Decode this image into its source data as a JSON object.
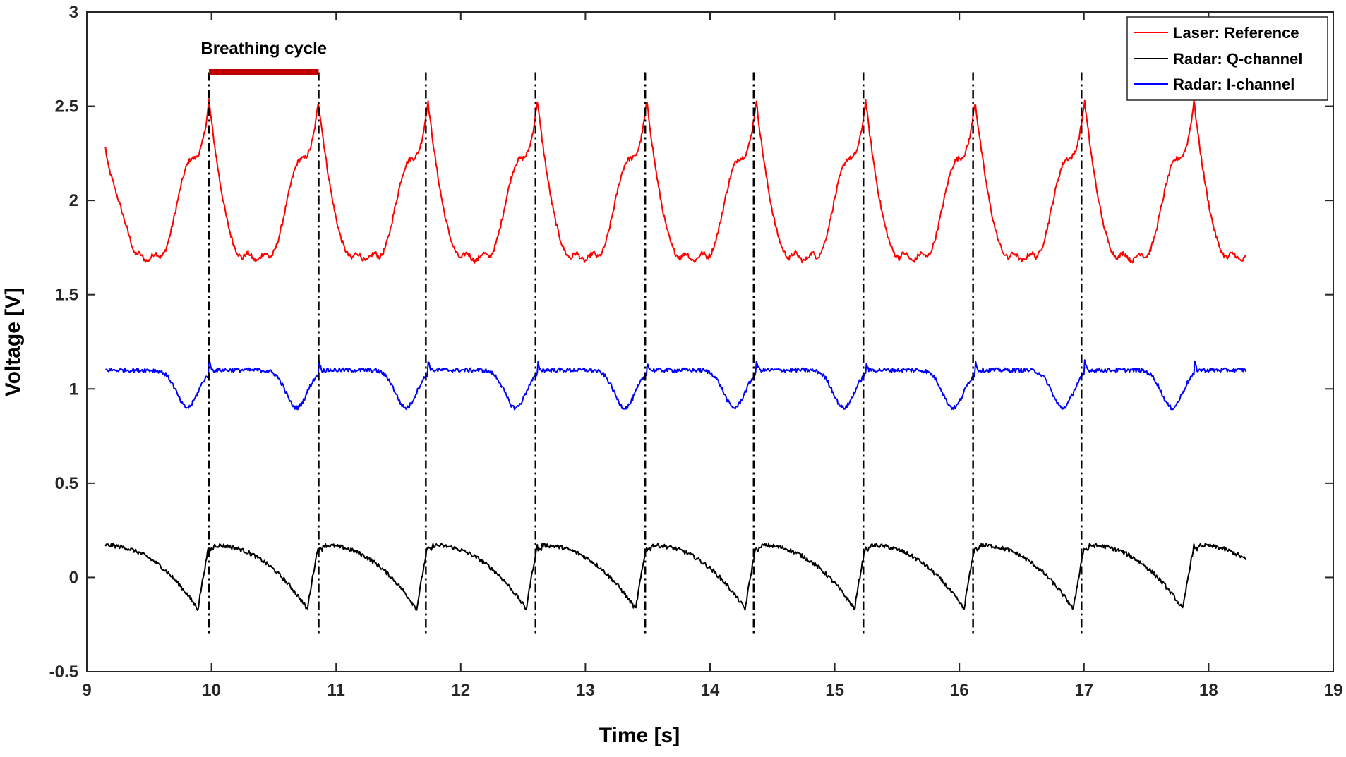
{
  "chart_data": {
    "type": "line",
    "xlabel": "Time [s]",
    "ylabel": "Voltage [V]",
    "xlim": [
      9,
      19
    ],
    "ylim": [
      -0.5,
      3
    ],
    "xticks": [
      9,
      10,
      11,
      12,
      13,
      14,
      15,
      16,
      17,
      18,
      19
    ],
    "yticks": [
      -0.5,
      0,
      0.5,
      1,
      1.5,
      2,
      2.5,
      3
    ],
    "ytick_labels": [
      "-0.5",
      "0",
      "0.5",
      "1",
      "1.5",
      "2",
      "2.5",
      "3"
    ],
    "grid": false,
    "legend_position": "top-right",
    "x_range": [
      9.15,
      18.3
    ],
    "series": [
      {
        "name": "Laser: Reference",
        "color": "#ff0000",
        "cycle_period": 0.878,
        "first_peak_time": 9.98,
        "peak_value": 2.53,
        "baseline_value": 1.7,
        "start_value": 2.23
      },
      {
        "name": "Radar: Q-channel",
        "color": "#000000",
        "cycle_period": 0.878,
        "first_peak_time": 9.98,
        "peak_value": 0.17,
        "trough_value": -0.17
      },
      {
        "name": "Radar: I-channel",
        "color": "#0000ff",
        "cycle_period": 0.878,
        "first_peak_time": 9.98,
        "plateau_value": 1.1,
        "dip_value": 0.9
      }
    ],
    "vertical_markers": [
      9.98,
      10.86,
      11.72,
      12.6,
      13.48,
      14.35,
      15.23,
      16.11,
      16.98
    ],
    "annotation": {
      "text": "Breathing cycle",
      "span": [
        9.98,
        10.86
      ],
      "level": 2.68,
      "color": "#c00000"
    }
  }
}
